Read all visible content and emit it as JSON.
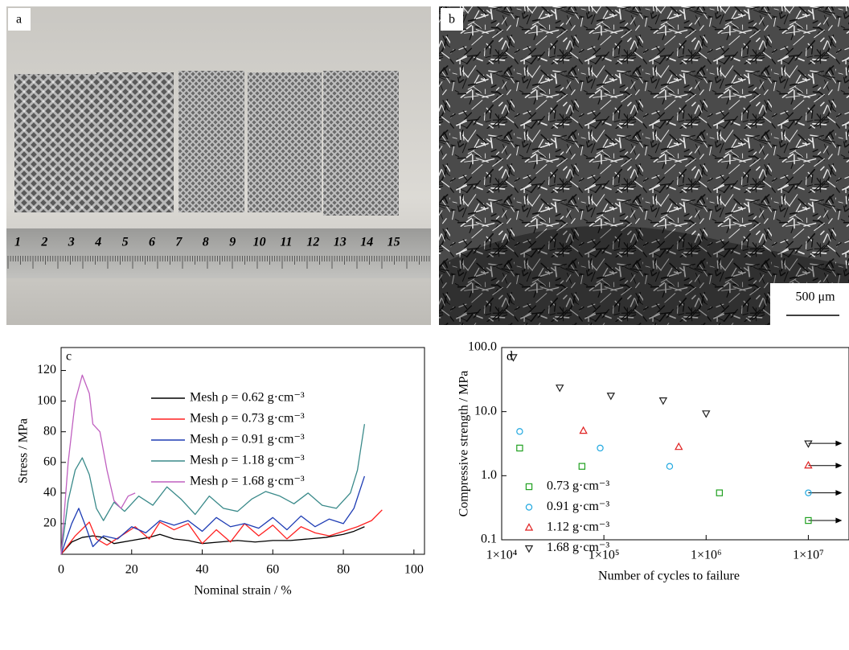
{
  "photos": [
    {
      "label": "a",
      "ruler_labels": [
        "1",
        "2",
        "3",
        "4",
        "5",
        "6",
        "7",
        "8",
        "9",
        "10",
        "11",
        "12",
        "13",
        "14",
        "15"
      ]
    },
    {
      "label": "b",
      "scale_bar": "500 μm"
    }
  ],
  "chart_data": [
    {
      "type": "line",
      "label": "c",
      "xlabel": "Nominal strain / %",
      "ylabel": "Stress / MPa",
      "xlim": [
        0,
        103
      ],
      "ylim": [
        0,
        135
      ],
      "xticks": [
        0,
        20,
        40,
        60,
        80,
        100
      ],
      "yticks": [
        20,
        40,
        60,
        80,
        100,
        120
      ],
      "series": [
        {
          "name": "Mesh ρ = 0.62 g·cm⁻³",
          "color": "#000000",
          "x": [
            0,
            3,
            6,
            9,
            12,
            15,
            20,
            25,
            28,
            32,
            36,
            40,
            45,
            50,
            55,
            60,
            65,
            70,
            75,
            80,
            83,
            86
          ],
          "values": [
            0,
            8,
            11,
            12,
            11,
            7,
            9,
            11,
            13,
            10,
            9,
            7,
            8,
            9,
            8,
            9,
            9,
            10,
            11,
            13,
            15,
            18
          ]
        },
        {
          "name": "Mesh ρ = 0.73 g·cm⁻³",
          "color": "#ff2020",
          "x": [
            0,
            4,
            8,
            10,
            13,
            17,
            21,
            25,
            28,
            32,
            36,
            40,
            44,
            48,
            52,
            56,
            60,
            64,
            68,
            72,
            76,
            80,
            84,
            88,
            91
          ],
          "values": [
            0,
            12,
            21,
            10,
            6,
            12,
            18,
            10,
            21,
            16,
            20,
            7,
            16,
            8,
            20,
            12,
            19,
            10,
            18,
            14,
            12,
            15,
            18,
            22,
            29
          ]
        },
        {
          "name": "Mesh ρ = 0.91 g·cm⁻³",
          "color": "#1e3cb4",
          "x": [
            0,
            3,
            5,
            7,
            9,
            12,
            16,
            20,
            24,
            28,
            32,
            36,
            40,
            44,
            48,
            52,
            56,
            60,
            64,
            68,
            72,
            76,
            80,
            83,
            86
          ],
          "values": [
            0,
            20,
            30,
            18,
            5,
            12,
            10,
            18,
            14,
            22,
            19,
            22,
            15,
            24,
            18,
            20,
            17,
            24,
            16,
            25,
            18,
            23,
            20,
            30,
            51
          ]
        },
        {
          "name": "Mesh ρ = 1.18 g·cm⁻³",
          "color": "#3a8a8a",
          "x": [
            0,
            2,
            4,
            6,
            8,
            10,
            12,
            15,
            18,
            22,
            26,
            30,
            34,
            38,
            42,
            46,
            50,
            54,
            58,
            62,
            66,
            70,
            74,
            78,
            82,
            84,
            86
          ],
          "values": [
            0,
            35,
            55,
            63,
            52,
            30,
            22,
            34,
            28,
            38,
            32,
            44,
            36,
            26,
            38,
            30,
            28,
            36,
            41,
            38,
            33,
            40,
            32,
            30,
            40,
            55,
            85
          ]
        },
        {
          "name": "Mesh ρ = 1.68 g·cm⁻³",
          "color": "#c060c0",
          "x": [
            0,
            2,
            4,
            6,
            8,
            9,
            11,
            13,
            15,
            17,
            19,
            21
          ],
          "values": [
            0,
            60,
            100,
            117,
            105,
            85,
            80,
            55,
            35,
            30,
            38,
            40
          ]
        }
      ]
    },
    {
      "type": "scatter",
      "label": "d",
      "xlabel": "Number of cycles to failure",
      "ylabel": "Compressive strength / MPa",
      "xscale": "log",
      "yscale": "log",
      "xlim": [
        10000,
        25000000
      ],
      "ylim": [
        0.1,
        100
      ],
      "xticks": [
        {
          "value": 10000,
          "label": "1×10⁴"
        },
        {
          "value": 100000,
          "label": "1×10⁵"
        },
        {
          "value": 1000000,
          "label": "1×10⁶"
        },
        {
          "value": 10000000,
          "label": "1×10⁷"
        }
      ],
      "yticks": [
        0.1,
        {
          "value": 1,
          "label": "1.0"
        },
        {
          "value": 10,
          "label": "10.0"
        },
        {
          "value": 100,
          "label": "100.0"
        }
      ],
      "series": [
        {
          "name": "0.73 g·cm⁻³",
          "color": "#20a020",
          "marker": "square",
          "x": [
            15000,
            61000,
            1350000,
            10000000
          ],
          "values": [
            2.7,
            1.4,
            0.54,
            0.2
          ],
          "runout": [
            false,
            false,
            false,
            true
          ]
        },
        {
          "name": "0.91 g·cm⁻³",
          "color": "#20a8e0",
          "marker": "circle",
          "x": [
            15000,
            92000,
            440000,
            10000000
          ],
          "values": [
            4.9,
            2.7,
            1.4,
            0.54
          ],
          "runout": [
            false,
            false,
            false,
            true
          ]
        },
        {
          "name": "1.12 g·cm⁻³",
          "color": "#e02020",
          "marker": "triangle-up",
          "x": [
            63000,
            540000,
            10000000
          ],
          "values": [
            5.0,
            2.8,
            1.44
          ],
          "runout": [
            false,
            false,
            true
          ]
        },
        {
          "name": "1.68 g·cm⁻³",
          "color": "#202020",
          "marker": "triangle-down",
          "x": [
            13000,
            37000,
            117000,
            380000,
            1000000,
            10000000
          ],
          "values": [
            71,
            23.8,
            17.8,
            15,
            9.4,
            3.2
          ],
          "runout": [
            false,
            false,
            false,
            false,
            false,
            true
          ]
        }
      ]
    }
  ]
}
